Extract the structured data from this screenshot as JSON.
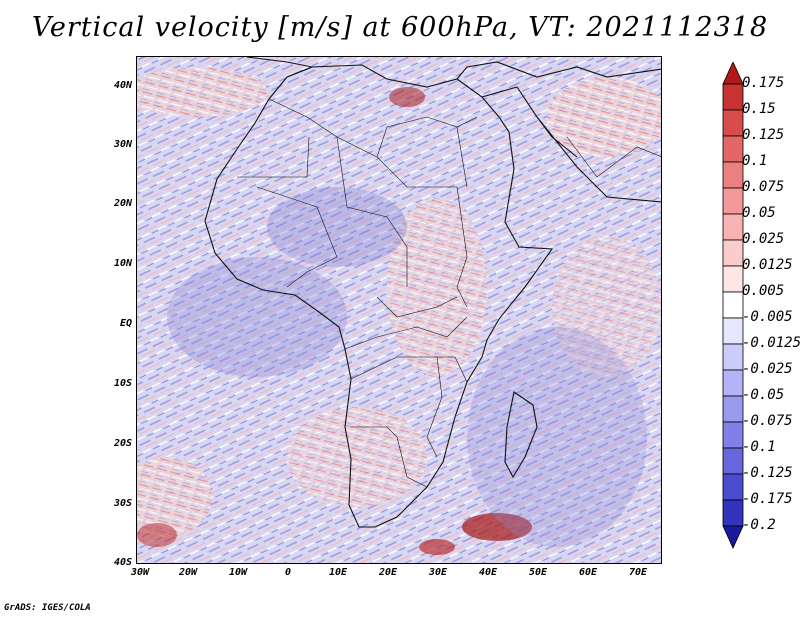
{
  "title": "Vertical velocity [m/s] at 600hPa, VT: 2021112318",
  "lat_labels": [
    "40N",
    "30N",
    "20N",
    "10N",
    "EQ",
    "10S",
    "20S",
    "30S",
    "40S"
  ],
  "lon_labels": [
    "30W",
    "20W",
    "10W",
    "0",
    "10E",
    "20E",
    "30E",
    "40E",
    "50E",
    "60E",
    "70E"
  ],
  "colorbar": {
    "labels": [
      "0.175",
      "0.15",
      "0.125",
      "0.1",
      "0.075",
      "0.05",
      "0.025",
      "0.0125",
      "0.005",
      "-0.005",
      "-0.0125",
      "-0.025",
      "-0.05",
      "-0.075",
      "-0.1",
      "-0.125",
      "-0.175",
      "-0.2"
    ],
    "colors": [
      "#b21a1a",
      "#c73333",
      "#d84c4c",
      "#e46666",
      "#ec8080",
      "#f39999",
      "#f7b3b3",
      "#fbcccc",
      "#fde6e6",
      "#ffffff",
      "#e6e6fd",
      "#ccccfb",
      "#b3b3f5",
      "#9999ee",
      "#8080e6",
      "#6666dd",
      "#4c4cd0",
      "#3333bb",
      "#1a1a9e"
    ]
  },
  "credit": "GrADS: IGES/COLA"
}
